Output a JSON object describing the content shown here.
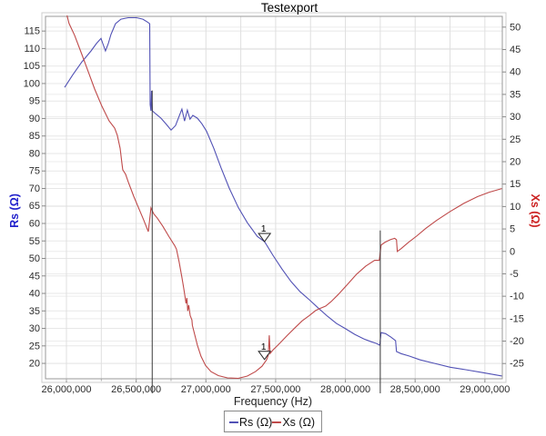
{
  "chart_data": {
    "type": "line",
    "title": "Testexport",
    "xlabel": "Frequency (Hz)",
    "ylabel_left": "Rs (Ω)",
    "ylabel_right": "Xs (Ω)",
    "grid": true,
    "legend_position": "bottom",
    "x_range": [
      25850000,
      29125000
    ],
    "x_minor_step": 250000,
    "x_ticks": [
      {
        "value": 26000000,
        "label": "26,000,000"
      },
      {
        "value": 26500000,
        "label": "26,500,000"
      },
      {
        "value": 27000000,
        "label": "27,000,000"
      },
      {
        "value": 27500000,
        "label": "27,500,000"
      },
      {
        "value": 28000000,
        "label": "28,000,000"
      },
      {
        "value": 28500000,
        "label": "28,500,000"
      },
      {
        "value": 29000000,
        "label": "29,000,000"
      }
    ],
    "left_axis": {
      "min": 15.6,
      "max": 119.2,
      "tick_step": 5,
      "ticks": [
        20,
        25,
        30,
        35,
        40,
        45,
        50,
        55,
        60,
        65,
        70,
        75,
        80,
        85,
        90,
        95,
        100,
        105,
        110,
        115
      ],
      "label_color": "#2222cc"
    },
    "right_axis": {
      "min": -28.4,
      "max": 52.4,
      "tick_step": 5,
      "ticks": [
        -25,
        -20,
        -15,
        -10,
        -5,
        0,
        5,
        10,
        15,
        20,
        25,
        30,
        35,
        40,
        45,
        50
      ],
      "label_color": "#cc2222"
    },
    "cursor_lines": [
      {
        "freq": 26615000,
        "top_value_left": 98
      },
      {
        "freq": 28250000,
        "top_value_left": 58
      }
    ],
    "markers": [
      {
        "label": "1",
        "series": "Rs (Ω)",
        "axis": "left",
        "freq": 27420000,
        "value": 54.8
      },
      {
        "label": "1",
        "series": "Xs (Ω)",
        "axis": "right",
        "freq": 27420000,
        "value": -24.1
      }
    ],
    "legend": {
      "entries": [
        {
          "label": "Rs (Ω)",
          "color": "#5151b5"
        },
        {
          "label": "Xs (Ω)",
          "color": "#bf4a4a"
        }
      ]
    },
    "series": [
      {
        "name": "Rs (Ω)",
        "axis": "left",
        "color": "#5151b5",
        "points": [
          [
            25987000,
            98.9
          ],
          [
            26046000,
            102.5
          ],
          [
            26111000,
            106.2
          ],
          [
            26176000,
            109.3
          ],
          [
            26215000,
            111.4
          ],
          [
            26248000,
            112.9
          ],
          [
            26261000,
            111.4
          ],
          [
            26280000,
            109.3
          ],
          [
            26300000,
            111.4
          ],
          [
            26319000,
            114.0
          ],
          [
            26352000,
            117.1
          ],
          [
            26391000,
            118.4
          ],
          [
            26443000,
            118.8
          ],
          [
            26502000,
            118.8
          ],
          [
            26548000,
            118.4
          ],
          [
            26580000,
            117.6
          ],
          [
            26597000,
            117.1
          ],
          [
            26600000,
            94.0
          ],
          [
            26606000,
            92.2
          ],
          [
            26610000,
            97.9
          ],
          [
            26616000,
            92.2
          ],
          [
            26639000,
            91.4
          ],
          [
            26678000,
            90.1
          ],
          [
            26717000,
            88.3
          ],
          [
            26750000,
            86.7
          ],
          [
            26782000,
            88.0
          ],
          [
            26808000,
            90.6
          ],
          [
            26828000,
            92.7
          ],
          [
            26847000,
            89.3
          ],
          [
            26867000,
            92.4
          ],
          [
            26886000,
            89.8
          ],
          [
            26906000,
            90.9
          ],
          [
            26939000,
            90.1
          ],
          [
            26971000,
            88.5
          ],
          [
            27004000,
            86.4
          ],
          [
            27056000,
            81.5
          ],
          [
            27108000,
            76.0
          ],
          [
            27167000,
            70.1
          ],
          [
            27232000,
            64.6
          ],
          [
            27297000,
            60.2
          ],
          [
            27369000,
            56.3
          ],
          [
            27420000,
            54.8
          ],
          [
            27480000,
            50.9
          ],
          [
            27545000,
            47.0
          ],
          [
            27610000,
            43.4
          ],
          [
            27675000,
            40.5
          ],
          [
            27741000,
            38.2
          ],
          [
            27806000,
            35.8
          ],
          [
            27871000,
            33.5
          ],
          [
            27936000,
            31.4
          ],
          [
            28001000,
            29.9
          ],
          [
            28067000,
            28.3
          ],
          [
            28132000,
            27.0
          ],
          [
            28184000,
            26.2
          ],
          [
            28223000,
            25.7
          ],
          [
            28246000,
            25.2
          ],
          [
            28256000,
            28.8
          ],
          [
            28288000,
            28.5
          ],
          [
            28327000,
            27.5
          ],
          [
            28360000,
            26.5
          ],
          [
            28366000,
            23.4
          ],
          [
            28399000,
            22.8
          ],
          [
            28458000,
            22.1
          ],
          [
            28536000,
            21.0
          ],
          [
            28640000,
            20.0
          ],
          [
            28751000,
            18.9
          ],
          [
            28862000,
            18.2
          ],
          [
            28979000,
            17.4
          ],
          [
            29122000,
            16.4
          ]
        ]
      },
      {
        "name": "Xs (Ω)",
        "axis": "right",
        "color": "#bf4a4a",
        "points": [
          [
            25985000,
            55.0
          ],
          [
            26019000,
            50.8
          ],
          [
            26058000,
            48.2
          ],
          [
            26111000,
            43.9
          ],
          [
            26156000,
            40.1
          ],
          [
            26202000,
            36.2
          ],
          [
            26254000,
            32.4
          ],
          [
            26306000,
            29.1
          ],
          [
            26346000,
            27.5
          ],
          [
            26365000,
            25.9
          ],
          [
            26385000,
            23.0
          ],
          [
            26398000,
            19.6
          ],
          [
            26404000,
            18.2
          ],
          [
            26424000,
            17.2
          ],
          [
            26443000,
            15.5
          ],
          [
            26482000,
            12.3
          ],
          [
            26521000,
            9.4
          ],
          [
            26554000,
            7.0
          ],
          [
            26574000,
            5.4
          ],
          [
            26587000,
            4.4
          ],
          [
            26606000,
            9.7
          ],
          [
            26626000,
            8.4
          ],
          [
            26652000,
            7.4
          ],
          [
            26691000,
            5.6
          ],
          [
            26737000,
            3.2
          ],
          [
            26776000,
            1.3
          ],
          [
            26789000,
            0.5
          ],
          [
            26808000,
            -2.3
          ],
          [
            26828000,
            -5.8
          ],
          [
            26841000,
            -8.2
          ],
          [
            26851000,
            -10.2
          ],
          [
            26857000,
            -11.6
          ],
          [
            26864000,
            -10.4
          ],
          [
            26870000,
            -13.3
          ],
          [
            26877000,
            -12.0
          ],
          [
            26887000,
            -14.3
          ],
          [
            26900000,
            -15.3
          ],
          [
            26903000,
            -16.5
          ],
          [
            26919000,
            -18.5
          ],
          [
            26939000,
            -20.9
          ],
          [
            26965000,
            -23.4
          ],
          [
            26997000,
            -25.4
          ],
          [
            27036000,
            -26.8
          ],
          [
            27089000,
            -27.7
          ],
          [
            27154000,
            -28.2
          ],
          [
            27232000,
            -28.3
          ],
          [
            27297000,
            -27.8
          ],
          [
            27356000,
            -26.8
          ],
          [
            27402000,
            -25.6
          ],
          [
            27434000,
            -24.2
          ],
          [
            27447000,
            -23.2
          ],
          [
            27454000,
            -18.7
          ],
          [
            27460000,
            -22.8
          ],
          [
            27480000,
            -22.0
          ],
          [
            27532000,
            -20.4
          ],
          [
            27584000,
            -18.7
          ],
          [
            27636000,
            -17.1
          ],
          [
            27689000,
            -15.5
          ],
          [
            27741000,
            -14.3
          ],
          [
            27786000,
            -13.2
          ],
          [
            27819000,
            -12.7
          ],
          [
            27858000,
            -12.2
          ],
          [
            27897000,
            -11.2
          ],
          [
            27949000,
            -9.6
          ],
          [
            28014000,
            -7.4
          ],
          [
            28080000,
            -5.1
          ],
          [
            28145000,
            -3.3
          ],
          [
            28210000,
            -2.0
          ],
          [
            28243000,
            -2.0
          ],
          [
            28256000,
            1.4
          ],
          [
            28282000,
            2.0
          ],
          [
            28321000,
            2.6
          ],
          [
            28353000,
            2.9
          ],
          [
            28366000,
            2.6
          ],
          [
            28372000,
            0.0
          ],
          [
            28399000,
            0.6
          ],
          [
            28451000,
            2.0
          ],
          [
            28510000,
            3.4
          ],
          [
            28575000,
            5.1
          ],
          [
            28653000,
            6.9
          ],
          [
            28751000,
            8.9
          ],
          [
            28849000,
            10.7
          ],
          [
            28947000,
            12.2
          ],
          [
            29031000,
            13.2
          ],
          [
            29122000,
            14.0
          ]
        ]
      }
    ]
  }
}
